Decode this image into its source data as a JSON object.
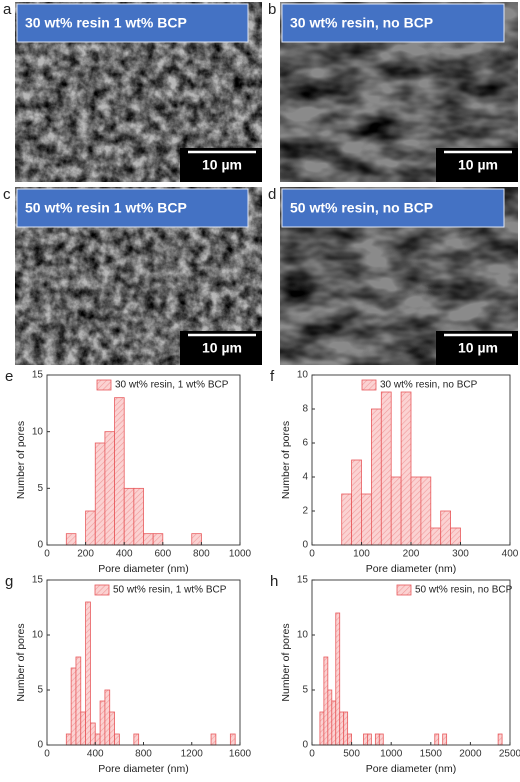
{
  "panels": [
    {
      "letter": "a",
      "label": "30 wt% resin 1 wt% BCP",
      "scale": "10 µm"
    },
    {
      "letter": "b",
      "label": "30 wt% resin, no BCP",
      "scale": "10 µm"
    },
    {
      "letter": "c",
      "label": "50 wt% resin 1 wt% BCP",
      "scale": "10 µm"
    },
    {
      "letter": "d",
      "label": "50 wt% resin, no BCP",
      "scale": "10 µm"
    }
  ],
  "chart_data": [
    {
      "type": "histogram",
      "label": "e",
      "xlabel": "Pore diameter (nm)",
      "ylabel": "Number of pores",
      "bins": [
        100,
        150,
        200,
        250,
        300,
        350,
        400,
        450,
        500,
        550,
        600,
        650,
        700,
        750,
        800
      ],
      "series": [
        {
          "name": "30 wt% resin, 1 wt% BCP",
          "color": "#e8595c",
          "values": [
            1,
            0,
            3,
            9,
            10,
            13,
            5,
            5,
            1,
            1,
            0,
            0,
            0,
            1
          ]
        }
      ],
      "xlim": [
        0,
        1000
      ],
      "xticks": [
        0,
        200,
        400,
        600,
        800,
        1000
      ],
      "ylim": [
        0,
        15
      ],
      "yticks": [
        0,
        5,
        10,
        15
      ]
    },
    {
      "type": "histogram",
      "label": "f",
      "xlabel": "Pore diameter (nm)",
      "ylabel": "Number of pores",
      "bins": [
        60,
        80,
        100,
        120,
        140,
        160,
        180,
        200,
        220,
        240,
        260,
        280,
        300
      ],
      "series": [
        {
          "name": "30 wt% resin, no BCP",
          "color": "#e8595c",
          "values": [
            3,
            5,
            3,
            8,
            9,
            4,
            9,
            4,
            4,
            1,
            2,
            1
          ]
        }
      ],
      "xlim": [
        0,
        400
      ],
      "xticks": [
        0,
        100,
        200,
        300,
        400
      ],
      "ylim": [
        0,
        10
      ],
      "yticks": [
        0,
        2,
        4,
        6,
        8,
        10
      ]
    },
    {
      "type": "histogram",
      "label": "g",
      "xlabel": "Pore diameter (nm)",
      "ylabel": "Number of pores",
      "bins": [
        160,
        200,
        240,
        280,
        320,
        360,
        400,
        440,
        480,
        520,
        560,
        600,
        640,
        680,
        720,
        760,
        800,
        840,
        880,
        920,
        960,
        1000,
        1040,
        1080,
        1120,
        1160,
        1200,
        1240,
        1280,
        1320,
        1360,
        1400,
        1440,
        1480,
        1520,
        1560
      ],
      "series": [
        {
          "name": "50 wt% resin, 1 wt% BCP",
          "color": "#e8595c",
          "values": [
            1,
            7,
            8,
            3,
            13,
            2,
            1,
            4,
            5,
            3,
            1,
            0,
            0,
            0,
            1,
            0,
            0,
            0,
            0,
            0,
            0,
            0,
            0,
            0,
            0,
            0,
            0,
            0,
            0,
            0,
            1,
            0,
            0,
            0,
            1
          ]
        }
      ],
      "xlim": [
        0,
        1600
      ],
      "xticks": [
        0,
        400,
        800,
        1200,
        1600
      ],
      "ylim": [
        0,
        15
      ],
      "yticks": [
        0,
        5,
        10,
        15
      ]
    },
    {
      "type": "histogram",
      "label": "h",
      "xlabel": "Pore diameter (nm)",
      "ylabel": "Number of pores",
      "bins": [
        100,
        150,
        200,
        250,
        300,
        350,
        400,
        450,
        500,
        550,
        600,
        650,
        700,
        750,
        800,
        850,
        900,
        950,
        1000,
        1050,
        1100,
        1150,
        1200,
        1250,
        1300,
        1350,
        1400,
        1450,
        1500,
        1550,
        1600,
        1650,
        1700,
        1750,
        1800,
        1850,
        1900,
        1950,
        2000,
        2050,
        2100,
        2150,
        2200,
        2250,
        2300,
        2350,
        2400
      ],
      "series": [
        {
          "name": "50 wt% resin, no BCP",
          "color": "#e8595c",
          "values": [
            3,
            8,
            5,
            4,
            12,
            3,
            3,
            1,
            0,
            0,
            0,
            1,
            1,
            0,
            1,
            1,
            0,
            0,
            0,
            0,
            0,
            0,
            0,
            0,
            0,
            0,
            0,
            0,
            0,
            1,
            0,
            1,
            0,
            0,
            0,
            0,
            0,
            0,
            0,
            0,
            0,
            0,
            0,
            0,
            0,
            1
          ]
        }
      ],
      "xlim": [
        0,
        2500
      ],
      "xticks": [
        0,
        500,
        1000,
        1500,
        2000,
        2500
      ],
      "ylim": [
        0,
        15
      ],
      "yticks": [
        0,
        5,
        10,
        15
      ]
    }
  ]
}
